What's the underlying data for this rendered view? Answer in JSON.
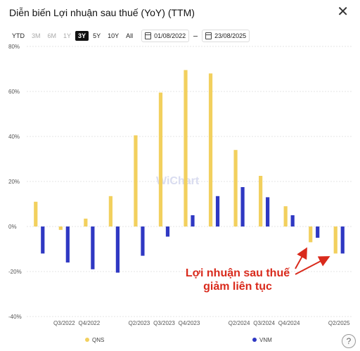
{
  "header": {
    "title": "Diễn biến Lợi nhuận sau thuế (YoY) (TTM)",
    "close_icon": "close-icon"
  },
  "toolbar": {
    "ranges": [
      {
        "label": "YTD",
        "state": "normal"
      },
      {
        "label": "3M",
        "state": "disabled"
      },
      {
        "label": "6M",
        "state": "disabled"
      },
      {
        "label": "1Y",
        "state": "disabled"
      },
      {
        "label": "3Y",
        "state": "active"
      },
      {
        "label": "5Y",
        "state": "normal"
      },
      {
        "label": "10Y",
        "state": "normal"
      },
      {
        "label": "All",
        "state": "normal"
      }
    ],
    "start_date": "01/08/2022",
    "end_date": "23/08/2025"
  },
  "watermark": "WiChart",
  "annotation": {
    "line1": "Lợi nhuận sau thuế",
    "line2": "giảm liên tục"
  },
  "colors": {
    "qns": "#f2d05e",
    "vnm": "#2f38c3",
    "annotation": "#d92a1c"
  },
  "chart_data": {
    "type": "bar",
    "categories": [
      "Q2/2022",
      "Q3/2022",
      "Q4/2022",
      "Q1/2023",
      "Q2/2023",
      "Q3/2023",
      "Q4/2023",
      "Q1/2024",
      "Q2/2024",
      "Q3/2024",
      "Q4/2024",
      "Q1/2025",
      "Q2/2025"
    ],
    "x_tick_labels": [
      "Q3/2022",
      "Q4/2022",
      "Q2/2023",
      "Q3/2023",
      "Q4/2023",
      "Q2/2024",
      "Q3/2024",
      "Q4/2024",
      "Q2/2025"
    ],
    "series": [
      {
        "name": "QNS",
        "values": [
          11,
          -1.5,
          3.5,
          13.5,
          40.5,
          59.5,
          69.5,
          68,
          34,
          22.5,
          9,
          -7,
          -12
        ]
      },
      {
        "name": "VNM",
        "values": [
          -12,
          -16,
          -19,
          -20.5,
          -13,
          -4.5,
          5,
          13.5,
          17.5,
          13,
          5,
          -5,
          -12
        ]
      }
    ],
    "y_tick_labels": [
      "80%",
      "60%",
      "40%",
      "20%",
      "0%",
      "-20%",
      "-40%"
    ],
    "ylim": [
      -40,
      80
    ],
    "grid": true,
    "legend_position": "bottom"
  }
}
